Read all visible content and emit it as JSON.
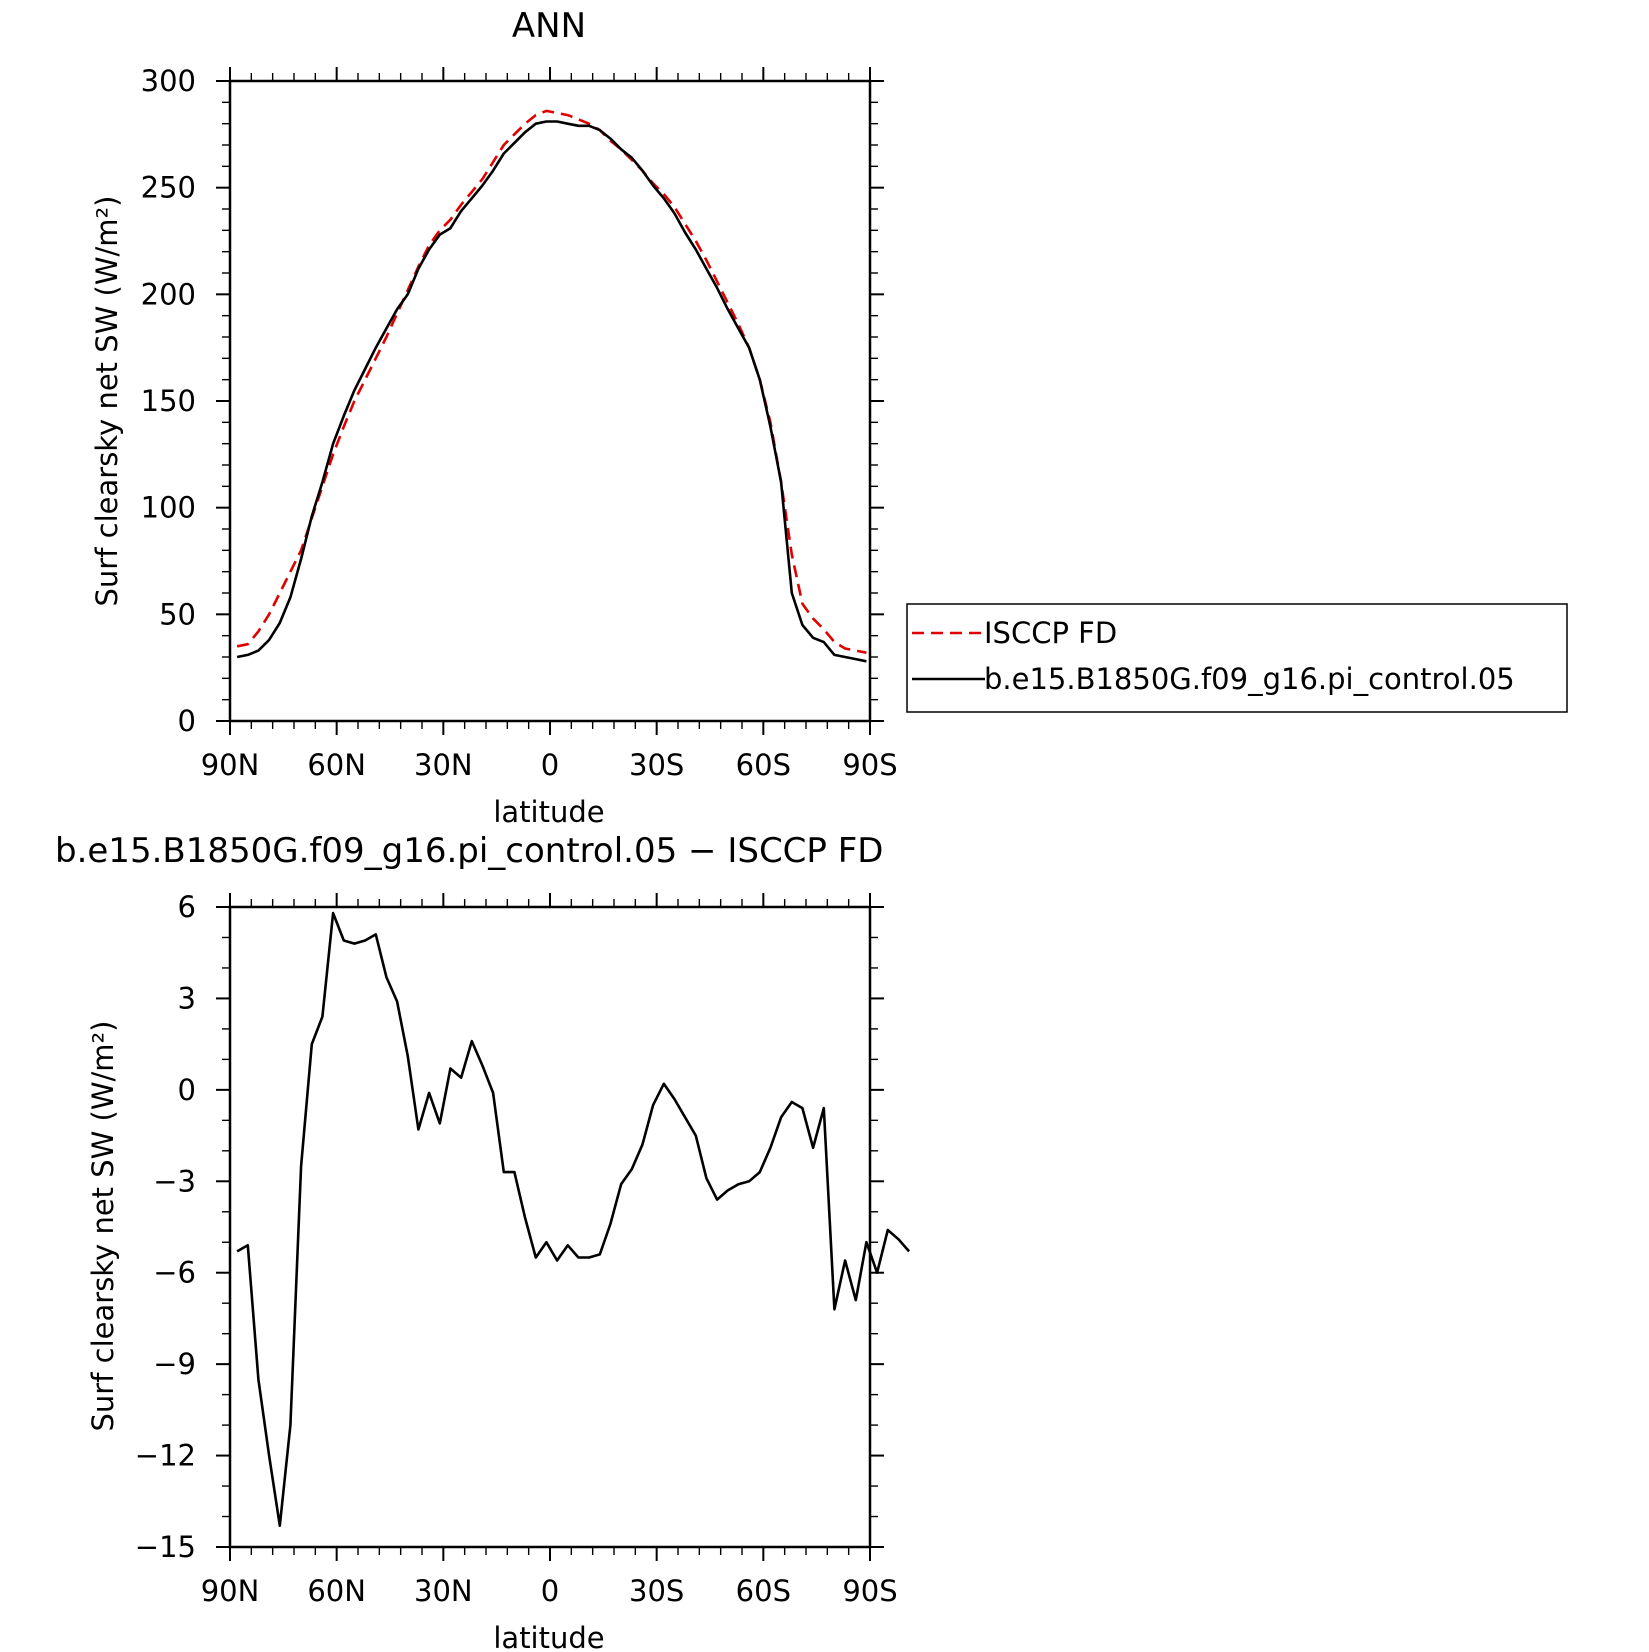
{
  "figure": {
    "title": "ANN",
    "diff_title": "b.e15.B1850G.f09_g16.pi_control.05 − ISCCP FD"
  },
  "chart_data": [
    {
      "type": "line",
      "title": "ANN",
      "xlabel": "latitude",
      "ylabel": "Surf clearsky net SW (W/m²)",
      "xlim": [
        90,
        -90
      ],
      "ylim": [
        0,
        300
      ],
      "xticks": [
        90,
        60,
        30,
        0,
        -30,
        -60,
        -90
      ],
      "xtick_labels": [
        "90N",
        "60N",
        "30N",
        "0",
        "30S",
        "60S",
        "90S"
      ],
      "yticks": [
        0,
        50,
        100,
        150,
        200,
        250,
        300
      ],
      "ytick_labels": [
        "0",
        "50",
        "100",
        "150",
        "200",
        "250",
        "300"
      ],
      "legend_position": "right",
      "series": [
        {
          "name": "ISCCP FD",
          "color": "#e00000",
          "style": "dashed",
          "points": [
            [
              88,
              35
            ],
            [
              85,
              36
            ],
            [
              82,
              42
            ],
            [
              79,
              50
            ],
            [
              76,
              60
            ],
            [
              73,
              70
            ],
            [
              70,
              80
            ],
            [
              67,
              95
            ],
            [
              64,
              110
            ],
            [
              61,
              125
            ],
            [
              58,
              138
            ],
            [
              55,
              150
            ],
            [
              52,
              160
            ],
            [
              49,
              170
            ],
            [
              46,
              180
            ],
            [
              43,
              191
            ],
            [
              40,
              202
            ],
            [
              37,
              213
            ],
            [
              34,
              223
            ],
            [
              31,
              230
            ],
            [
              28,
              235
            ],
            [
              25,
              242
            ],
            [
              22,
              248
            ],
            [
              19,
              254
            ],
            [
              16,
              262
            ],
            [
              13,
              270
            ],
            [
              10,
              275
            ],
            [
              7,
              280
            ],
            [
              4,
              284
            ],
            [
              1,
              286
            ],
            [
              -2,
              285
            ],
            [
              -5,
              284
            ],
            [
              -8,
              282
            ],
            [
              -11,
              280
            ],
            [
              -14,
              277
            ],
            [
              -17,
              272
            ],
            [
              -20,
              268
            ],
            [
              -23,
              263
            ],
            [
              -26,
              258
            ],
            [
              -29,
              252
            ],
            [
              -32,
              247
            ],
            [
              -35,
              241
            ],
            [
              -38,
              233
            ],
            [
              -41,
              225
            ],
            [
              -44,
              216
            ],
            [
              -47,
              206
            ],
            [
              -50,
              196
            ],
            [
              -53,
              186
            ],
            [
              -56,
              175
            ],
            [
              -59,
              160
            ],
            [
              -62,
              140
            ],
            [
              -65,
              112
            ],
            [
              -68,
              78
            ],
            [
              -71,
              55
            ],
            [
              -74,
              48
            ],
            [
              -77,
              43
            ],
            [
              -80,
              37
            ],
            [
              -83,
              34
            ],
            [
              -86,
              33
            ],
            [
              -89,
              32
            ]
          ]
        },
        {
          "name": "b.e15.B1850G.f09_g16.pi_control.05",
          "color": "#000000",
          "style": "solid",
          "points": [
            [
              88,
              30
            ],
            [
              85,
              31
            ],
            [
              82,
              33
            ],
            [
              79,
              38
            ],
            [
              76,
              46
            ],
            [
              73,
              58
            ],
            [
              70,
              76
            ],
            [
              67,
              96
            ],
            [
              64,
              112
            ],
            [
              61,
              130
            ],
            [
              58,
              143
            ],
            [
              55,
              155
            ],
            [
              52,
              165
            ],
            [
              49,
              175
            ],
            [
              46,
              184
            ],
            [
              43,
              193
            ],
            [
              40,
              200
            ],
            [
              37,
              212
            ],
            [
              34,
              221
            ],
            [
              31,
              228
            ],
            [
              28,
              231
            ],
            [
              25,
              239
            ],
            [
              22,
              245
            ],
            [
              19,
              251
            ],
            [
              16,
              258
            ],
            [
              13,
              266
            ],
            [
              10,
              271
            ],
            [
              7,
              276
            ],
            [
              4,
              280
            ],
            [
              1,
              281
            ],
            [
              -2,
              281
            ],
            [
              -5,
              280
            ],
            [
              -8,
              279
            ],
            [
              -11,
              279
            ],
            [
              -14,
              277
            ],
            [
              -17,
              273
            ],
            [
              -20,
              268
            ],
            [
              -23,
              264
            ],
            [
              -26,
              258
            ],
            [
              -29,
              251
            ],
            [
              -32,
              245
            ],
            [
              -35,
              238
            ],
            [
              -38,
              229
            ],
            [
              -41,
              221
            ],
            [
              -44,
              212
            ],
            [
              -47,
              203
            ],
            [
              -50,
              193
            ],
            [
              -53,
              184
            ],
            [
              -56,
              175
            ],
            [
              -59,
              160
            ],
            [
              -62,
              138
            ],
            [
              -65,
              112
            ],
            [
              -68,
              60
            ],
            [
              -71,
              45
            ],
            [
              -74,
              39
            ],
            [
              -77,
              37
            ],
            [
              -80,
              31
            ],
            [
              -83,
              30
            ],
            [
              -86,
              29
            ],
            [
              -89,
              28
            ]
          ]
        }
      ]
    },
    {
      "type": "line",
      "title": "b.e15.B1850G.f09_g16.pi_control.05 − ISCCP FD",
      "xlabel": "latitude",
      "ylabel": "Surf clearsky net SW (W/m²)",
      "xlim": [
        90,
        -90
      ],
      "ylim": [
        -15,
        6
      ],
      "xticks": [
        90,
        60,
        30,
        0,
        -30,
        -60,
        -90
      ],
      "xtick_labels": [
        "90N",
        "60N",
        "30N",
        "0",
        "30S",
        "60S",
        "90S"
      ],
      "yticks": [
        -15,
        -12,
        -9,
        -6,
        -3,
        0,
        3,
        6
      ],
      "ytick_labels": [
        "−15",
        "−12",
        "−9",
        "−6",
        "−3",
        "0",
        "3",
        "6"
      ],
      "series": [
        {
          "name": "b.e15.B1850G.f09_g16.pi_control.05 − ISCCP FD",
          "color": "#000000",
          "style": "solid",
          "points": [
            [
              88,
              -5.3
            ],
            [
              85,
              -5.1
            ],
            [
              82,
              -9.5
            ],
            [
              79,
              -12.0
            ],
            [
              76,
              -14.3
            ],
            [
              73,
              -11.0
            ],
            [
              70,
              -2.5
            ],
            [
              67,
              1.5
            ],
            [
              64,
              2.4
            ],
            [
              61,
              5.8
            ],
            [
              58,
              4.9
            ],
            [
              55,
              4.8
            ],
            [
              52,
              4.9
            ],
            [
              49,
              5.1
            ],
            [
              46,
              3.7
            ],
            [
              43,
              2.9
            ],
            [
              40,
              1.1
            ],
            [
              37,
              -1.3
            ],
            [
              34,
              -0.1
            ],
            [
              31,
              -1.1
            ],
            [
              28,
              0.7
            ],
            [
              25,
              0.4
            ],
            [
              22,
              1.6
            ],
            [
              19,
              0.8
            ],
            [
              16,
              -0.1
            ],
            [
              13,
              -2.7
            ],
            [
              10,
              -2.7
            ],
            [
              7,
              -4.2
            ],
            [
              4,
              -5.5
            ],
            [
              1,
              -5.0
            ],
            [
              -2,
              -5.6
            ],
            [
              -5,
              -5.1
            ],
            [
              -8,
              -5.5
            ],
            [
              -11,
              -5.5
            ],
            [
              -14,
              -5.4
            ],
            [
              -17,
              -4.4
            ],
            [
              -20,
              -3.1
            ],
            [
              -23,
              -2.6
            ],
            [
              -26,
              -1.8
            ],
            [
              -29,
              -0.5
            ],
            [
              -32,
              0.2
            ],
            [
              -35,
              -0.3
            ],
            [
              -38,
              -0.9
            ],
            [
              -41,
              -1.5
            ],
            [
              -44,
              -2.9
            ],
            [
              -47,
              -3.6
            ],
            [
              -50,
              -3.3
            ],
            [
              -53,
              -3.1
            ],
            [
              -56,
              -3.0
            ],
            [
              -59,
              -2.7
            ],
            [
              -62,
              -1.9
            ],
            [
              -65,
              -0.9
            ],
            [
              -68,
              -0.4
            ],
            [
              -71,
              -0.6
            ],
            [
              -74,
              -1.9
            ],
            [
              -77,
              -0.6
            ],
            [
              -80,
              -7.2
            ],
            [
              -83,
              -5.6
            ],
            [
              -86,
              -6.9
            ],
            [
              -89,
              -5.0
            ],
            [
              -92,
              -6.0
            ],
            [
              -95,
              -4.6
            ],
            [
              -98,
              -4.9
            ],
            [
              -101,
              -5.3
            ]
          ]
        }
      ]
    }
  ]
}
